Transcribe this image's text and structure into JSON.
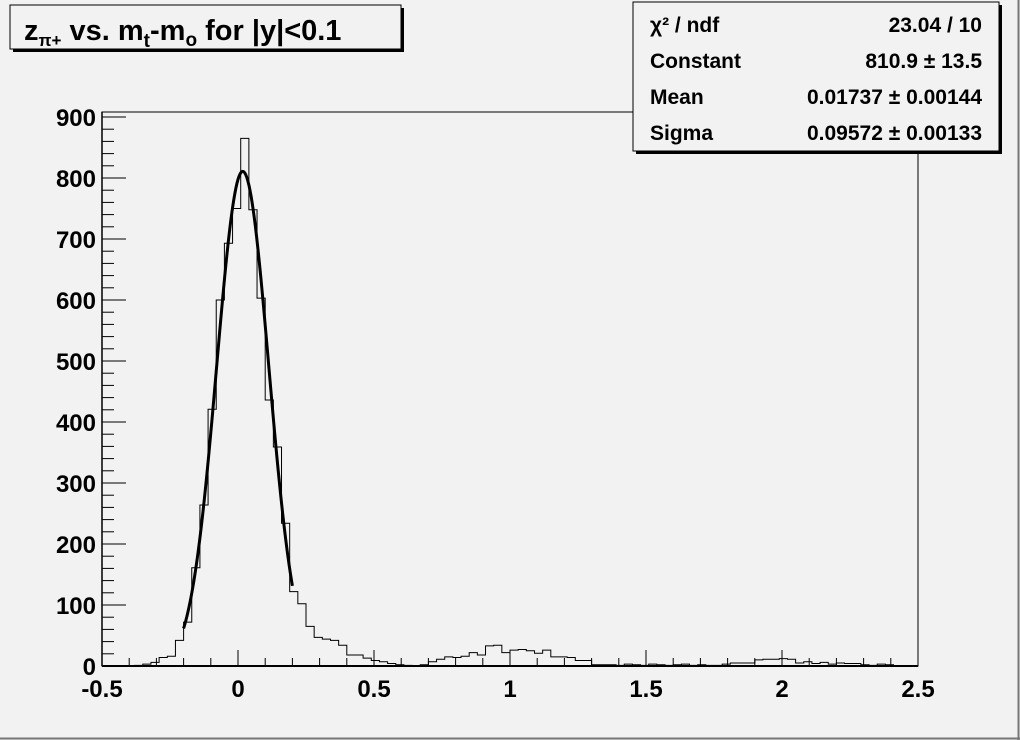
{
  "chart_data": {
    "type": "bar",
    "style": "step-histogram",
    "title": {
      "main": "z",
      "subscript": "π+",
      "middle": " vs. m",
      "sub2": "t",
      "middle2": "-m",
      "sub3": "o",
      "tail": " for |y|<0.1"
    },
    "xlabel": "",
    "ylabel": "",
    "xlim": [
      -0.5,
      2.5
    ],
    "ylim": [
      0,
      900
    ],
    "x_ticks": [
      "-0.5",
      "0",
      "0.5",
      "1",
      "1.5",
      "2",
      "2.5"
    ],
    "y_ticks": [
      "0",
      "100",
      "200",
      "300",
      "400",
      "500",
      "600",
      "700",
      "800",
      "900"
    ],
    "grid": false,
    "bin_width": 0.03,
    "bin_start": -0.5,
    "values": [
      0,
      0,
      0,
      0,
      1,
      3,
      6,
      14,
      16,
      42,
      72,
      161,
      264,
      421,
      600,
      693,
      750,
      865,
      748,
      603,
      436,
      359,
      234,
      122,
      102,
      65,
      47,
      44,
      42,
      34,
      18,
      18,
      13,
      9,
      7,
      4,
      2,
      1,
      0,
      2,
      7,
      11,
      15,
      14,
      16,
      22,
      18,
      33,
      34,
      22,
      26,
      27,
      25,
      21,
      26,
      15,
      15,
      14,
      9,
      9,
      2,
      2,
      2,
      1,
      3,
      2,
      1,
      3,
      2,
      1,
      2,
      3,
      1,
      2,
      1,
      1,
      3,
      5,
      5,
      5,
      10,
      11,
      11,
      12,
      11,
      5,
      7,
      4,
      6,
      3,
      5,
      4,
      4,
      2,
      1,
      3,
      2,
      0,
      0,
      0
    ],
    "fit": {
      "function": "gaus",
      "constant": 810.9,
      "mean": 0.01737,
      "sigma": 0.09572,
      "range": [
        -0.2,
        0.2
      ]
    },
    "stats_box": {
      "rows": [
        {
          "label": "χ² / ndf",
          "value": "23.04 / 10"
        },
        {
          "label": "Constant",
          "value": "810.9 ± 13.5"
        },
        {
          "label": "Mean",
          "value": "0.01737 ± 0.00144"
        },
        {
          "label": "Sigma",
          "value": "0.09572 ± 0.00133"
        }
      ],
      "placement": "top-right"
    },
    "colors": {
      "background": "#f2f2f2",
      "line": "#000000"
    }
  }
}
